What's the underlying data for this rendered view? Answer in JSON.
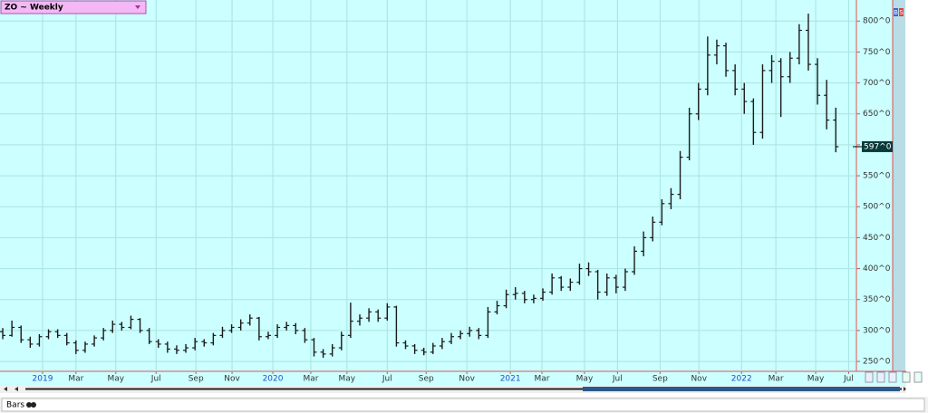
{
  "ui": {
    "symbol_title": "ZO ~ Weekly",
    "footer_tab": "Bars",
    "buttons": [
      "B",
      "S"
    ]
  },
  "chart_data": {
    "type": "ohlc",
    "color": "#1a1a1a",
    "background": "#ccffff",
    "grid": true,
    "xlim": [
      -0.6,
      186.5
    ],
    "ylim": [
      234,
      834
    ],
    "xticks": [
      {
        "value": 8.7,
        "label": "2019"
      },
      {
        "value": 16,
        "label": "Mar"
      },
      {
        "value": 24.7,
        "label": "May"
      },
      {
        "value": 33.5,
        "label": "Jul"
      },
      {
        "value": 42.2,
        "label": "Sep"
      },
      {
        "value": 50.1,
        "label": "Nov"
      },
      {
        "value": 59,
        "label": "2020"
      },
      {
        "value": 67.3,
        "label": "Mar"
      },
      {
        "value": 75.2,
        "label": "May"
      },
      {
        "value": 84,
        "label": "Jul"
      },
      {
        "value": 92.5,
        "label": "Sep"
      },
      {
        "value": 101.4,
        "label": "Nov"
      },
      {
        "value": 110.9,
        "label": "2021"
      },
      {
        "value": 117.8,
        "label": "Mar"
      },
      {
        "value": 127.1,
        "label": "May"
      },
      {
        "value": 134.3,
        "label": "Jul"
      },
      {
        "value": 143.6,
        "label": "Sep"
      },
      {
        "value": 152.1,
        "label": "Nov"
      },
      {
        "value": 161.4,
        "label": "2022"
      },
      {
        "value": 168.9,
        "label": "Mar"
      },
      {
        "value": 177.6,
        "label": "May"
      },
      {
        "value": 184.8,
        "label": "Jul"
      }
    ],
    "yticks": [
      {
        "value": 250,
        "label": "250^0"
      },
      {
        "value": 300,
        "label": "300^0"
      },
      {
        "value": 350,
        "label": "350^0"
      },
      {
        "value": 400,
        "label": "400^0"
      },
      {
        "value": 450,
        "label": "450^0"
      },
      {
        "value": 500,
        "label": "500^0"
      },
      {
        "value": 550,
        "label": "550^0"
      },
      {
        "value": 600,
        "label": "600^0"
      },
      {
        "value": 650,
        "label": "650^0"
      },
      {
        "value": 700,
        "label": "700^0"
      },
      {
        "value": 750,
        "label": "750^0"
      },
      {
        "value": 800,
        "label": "800^0"
      }
    ],
    "last_price": {
      "value": 597,
      "label": "597^0"
    },
    "x": [
      0,
      2,
      4,
      6,
      8,
      10,
      12,
      14,
      16,
      18,
      20,
      22,
      24,
      26,
      28,
      30,
      32,
      34,
      36,
      38,
      40,
      42,
      44,
      46,
      48,
      50,
      52,
      54,
      56,
      58,
      60,
      62,
      64,
      66,
      68,
      70,
      72,
      74,
      76,
      78,
      80,
      82,
      84,
      86,
      88,
      90,
      92,
      94,
      96,
      98,
      100,
      102,
      104,
      106,
      108,
      110,
      112,
      114,
      116,
      118,
      120,
      122,
      124,
      126,
      128,
      130,
      132,
      134,
      136,
      138,
      140,
      142,
      144,
      146,
      148,
      150,
      152,
      154,
      156,
      158,
      160,
      162,
      164,
      166,
      168,
      170,
      172,
      174,
      176,
      178,
      180,
      182
    ],
    "open": [
      298,
      292,
      305,
      285,
      278,
      290,
      298,
      292,
      280,
      268,
      278,
      288,
      300,
      310,
      305,
      318,
      300,
      282,
      278,
      270,
      268,
      272,
      282,
      280,
      292,
      300,
      305,
      312,
      320,
      290,
      292,
      305,
      308,
      300,
      285,
      265,
      262,
      272,
      292,
      315,
      320,
      330,
      320,
      338,
      280,
      275,
      268,
      265,
      275,
      282,
      290,
      295,
      300,
      292,
      330,
      340,
      358,
      360,
      350,
      352,
      362,
      385,
      370,
      378,
      400,
      395,
      362,
      385,
      370,
      395,
      428,
      450,
      475,
      505,
      520,
      580,
      650,
      690,
      745,
      760,
      720,
      690,
      670,
      620,
      720,
      735,
      710,
      740,
      785,
      730,
      680,
      640
    ],
    "high": [
      304,
      316,
      308,
      290,
      294,
      302,
      302,
      296,
      284,
      282,
      292,
      304,
      316,
      314,
      324,
      320,
      304,
      286,
      282,
      276,
      278,
      288,
      286,
      296,
      306,
      310,
      318,
      326,
      322,
      298,
      310,
      314,
      312,
      304,
      288,
      270,
      278,
      298,
      345,
      326,
      336,
      334,
      344,
      340,
      284,
      278,
      272,
      280,
      288,
      296,
      300,
      306,
      304,
      338,
      348,
      366,
      370,
      364,
      358,
      368,
      392,
      388,
      384,
      408,
      410,
      398,
      392,
      390,
      400,
      436,
      460,
      484,
      512,
      530,
      590,
      660,
      700,
      775,
      770,
      765,
      730,
      700,
      675,
      730,
      745,
      740,
      750,
      795,
      812,
      740,
      705,
      660
    ],
    "low": [
      286,
      290,
      280,
      272,
      274,
      286,
      288,
      276,
      262,
      264,
      274,
      284,
      296,
      300,
      302,
      296,
      278,
      272,
      264,
      262,
      264,
      268,
      274,
      276,
      288,
      296,
      300,
      308,
      284,
      286,
      288,
      300,
      294,
      280,
      258,
      256,
      258,
      268,
      288,
      308,
      314,
      314,
      316,
      274,
      270,
      262,
      260,
      262,
      270,
      278,
      286,
      290,
      286,
      288,
      326,
      336,
      350,
      344,
      344,
      348,
      358,
      364,
      364,
      374,
      388,
      350,
      356,
      360,
      364,
      390,
      420,
      444,
      470,
      496,
      512,
      575,
      640,
      680,
      730,
      710,
      680,
      650,
      600,
      610,
      700,
      645,
      700,
      730,
      720,
      665,
      625,
      588
    ],
    "close": [
      292,
      305,
      285,
      278,
      290,
      298,
      292,
      280,
      268,
      278,
      288,
      300,
      310,
      305,
      318,
      300,
      282,
      278,
      270,
      268,
      272,
      282,
      280,
      292,
      300,
      305,
      312,
      320,
      290,
      292,
      305,
      308,
      300,
      285,
      265,
      262,
      272,
      292,
      315,
      320,
      330,
      320,
      338,
      280,
      275,
      268,
      265,
      275,
      282,
      290,
      295,
      300,
      292,
      330,
      340,
      358,
      360,
      350,
      352,
      362,
      385,
      370,
      378,
      400,
      395,
      362,
      385,
      370,
      395,
      428,
      450,
      475,
      505,
      520,
      580,
      650,
      690,
      745,
      760,
      720,
      690,
      670,
      620,
      720,
      735,
      710,
      740,
      785,
      730,
      680,
      640,
      597
    ]
  }
}
